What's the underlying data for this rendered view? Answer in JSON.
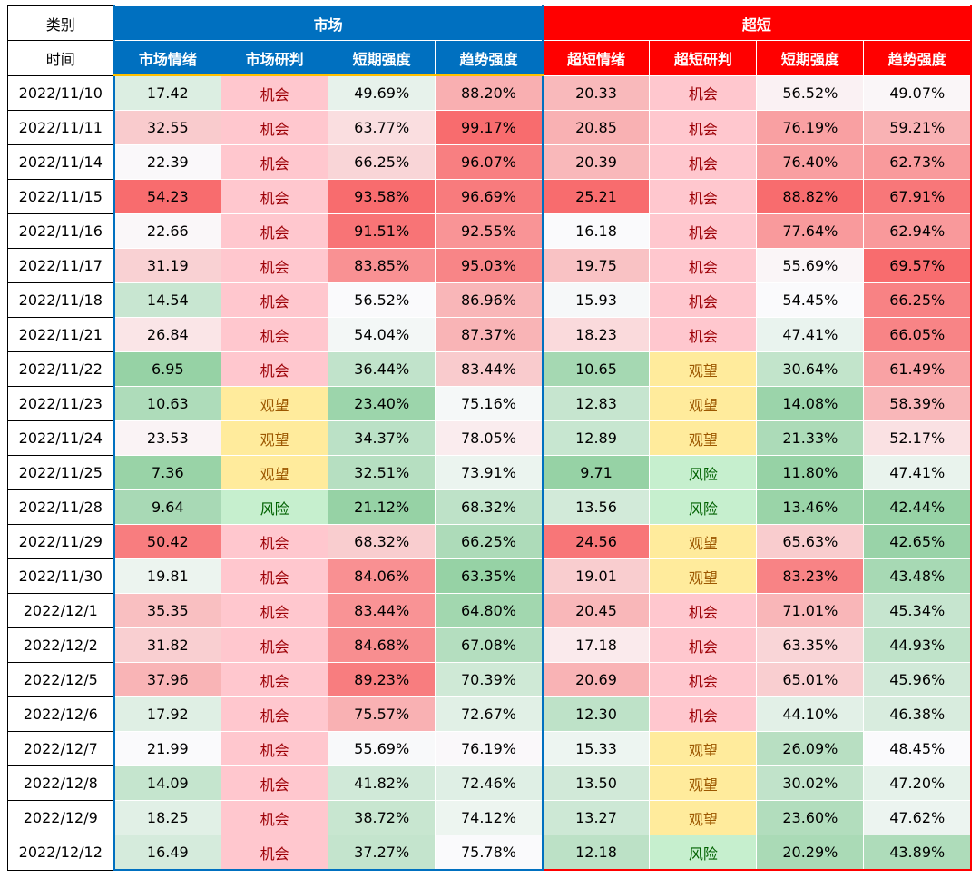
{
  "table": {
    "header": [
      [
        "类别",
        "市场",
        "超短"
      ],
      [
        "时间",
        "市场情绪",
        "市场研判",
        "短期强度",
        "趋势强度",
        "超短情绪",
        "超短研判",
        "短期强度",
        "趋势强度"
      ]
    ],
    "rows": [
      [
        "2022/11/10",
        "17.42",
        "机会",
        "49.69%",
        "88.20%",
        "20.33",
        "机会",
        "56.52%",
        "49.07%"
      ],
      [
        "2022/11/11",
        "32.55",
        "机会",
        "63.77%",
        "99.17%",
        "20.85",
        "机会",
        "76.19%",
        "59.21%"
      ],
      [
        "2022/11/14",
        "22.39",
        "机会",
        "66.25%",
        "96.07%",
        "20.39",
        "机会",
        "76.40%",
        "62.73%"
      ],
      [
        "2022/11/15",
        "54.23",
        "机会",
        "93.58%",
        "96.69%",
        "25.21",
        "机会",
        "88.82%",
        "67.91%"
      ],
      [
        "2022/11/16",
        "22.66",
        "机会",
        "91.51%",
        "92.55%",
        "16.18",
        "机会",
        "77.64%",
        "62.94%"
      ],
      [
        "2022/11/17",
        "31.19",
        "机会",
        "83.85%",
        "95.03%",
        "19.75",
        "机会",
        "55.69%",
        "69.57%"
      ],
      [
        "2022/11/18",
        "14.54",
        "机会",
        "56.52%",
        "86.96%",
        "15.93",
        "机会",
        "54.45%",
        "66.25%"
      ],
      [
        "2022/11/21",
        "26.84",
        "机会",
        "54.04%",
        "87.37%",
        "18.23",
        "机会",
        "47.41%",
        "66.05%"
      ],
      [
        "2022/11/22",
        "6.95",
        "机会",
        "36.44%",
        "83.44%",
        "10.65",
        "观望",
        "30.64%",
        "61.49%"
      ],
      [
        "2022/11/23",
        "10.63",
        "观望",
        "23.40%",
        "75.16%",
        "12.83",
        "观望",
        "14.08%",
        "58.39%"
      ],
      [
        "2022/11/24",
        "23.53",
        "观望",
        "34.37%",
        "78.05%",
        "12.89",
        "观望",
        "21.33%",
        "52.17%"
      ],
      [
        "2022/11/25",
        "7.36",
        "观望",
        "32.51%",
        "73.91%",
        "9.71",
        "风险",
        "11.80%",
        "47.41%"
      ],
      [
        "2022/11/28",
        "9.64",
        "风险",
        "21.12%",
        "68.32%",
        "13.56",
        "风险",
        "13.46%",
        "42.44%"
      ],
      [
        "2022/11/29",
        "50.42",
        "机会",
        "68.32%",
        "66.25%",
        "24.56",
        "观望",
        "65.63%",
        "42.65%"
      ],
      [
        "2022/11/30",
        "19.81",
        "机会",
        "84.06%",
        "63.35%",
        "19.01",
        "观望",
        "83.23%",
        "43.48%"
      ],
      [
        "2022/12/1",
        "35.35",
        "机会",
        "83.44%",
        "64.80%",
        "20.45",
        "机会",
        "71.01%",
        "45.34%"
      ],
      [
        "2022/12/2",
        "31.82",
        "机会",
        "84.68%",
        "67.08%",
        "17.18",
        "机会",
        "63.35%",
        "44.93%"
      ],
      [
        "2022/12/5",
        "37.96",
        "机会",
        "89.23%",
        "70.39%",
        "20.69",
        "机会",
        "65.01%",
        "45.96%"
      ],
      [
        "2022/12/6",
        "17.92",
        "机会",
        "75.57%",
        "72.67%",
        "12.30",
        "机会",
        "44.10%",
        "46.38%"
      ],
      [
        "2022/12/7",
        "21.99",
        "机会",
        "55.69%",
        "76.19%",
        "15.33",
        "观望",
        "26.09%",
        "48.45%"
      ],
      [
        "2022/12/8",
        "14.09",
        "机会",
        "41.82%",
        "72.46%",
        "13.50",
        "观望",
        "30.02%",
        "47.20%"
      ],
      [
        "2022/12/9",
        "18.25",
        "机会",
        "38.72%",
        "74.12%",
        "13.27",
        "观望",
        "23.60%",
        "47.62%"
      ],
      [
        "2022/12/12",
        "16.49",
        "机会",
        "37.27%",
        "75.78%",
        "12.18",
        "风险",
        "20.29%",
        "43.89%"
      ]
    ],
    "judgement_colors": {
      "机会": {
        "background": "#ffc7ce",
        "color": "#9c0006"
      },
      "观望": {
        "background": "#ffeb9c",
        "color": "#9c5700"
      },
      "风险": {
        "background": "#c6efce",
        "color": "#006100"
      }
    }
  }
}
